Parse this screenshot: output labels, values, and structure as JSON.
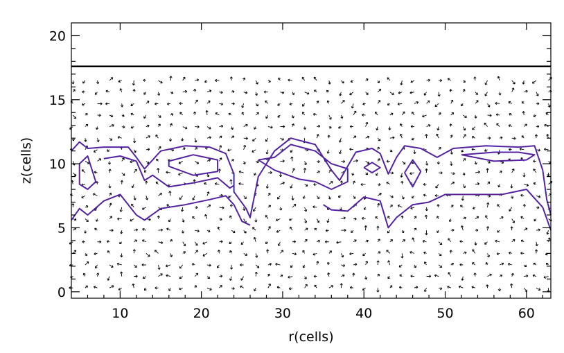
{
  "chart_data": {
    "type": "vector-contour",
    "xlabel": "r(cells)",
    "ylabel": "z(cells)",
    "xlim": [
      4,
      63
    ],
    "ylim": [
      -0.5,
      21
    ],
    "xticks": [
      10,
      20,
      30,
      40,
      50,
      60
    ],
    "xtick_labels": [
      "10",
      "20",
      "30",
      "40",
      "50",
      "60"
    ],
    "yticks": [
      0,
      5,
      10,
      15,
      20
    ],
    "ytick_labels": [
      "0",
      "5",
      "10",
      "15",
      "20"
    ],
    "boundary_line_z": 17.6,
    "vector_field": {
      "r_start": 4.2,
      "r_step": 1.5,
      "r_count": 40,
      "z_start": 0.3,
      "z_step": 0.9,
      "z_count": 19,
      "z_max": 17.0
    },
    "contours": [
      {
        "name": "outer",
        "points": [
          [
            4,
            11
          ],
          [
            5,
            11.7
          ],
          [
            6,
            11.2
          ],
          [
            8,
            11.3
          ],
          [
            11,
            11.3
          ],
          [
            12,
            10.5
          ],
          [
            13,
            9.6
          ],
          [
            15,
            11
          ],
          [
            18,
            11.4
          ],
          [
            21,
            11.3
          ],
          [
            23,
            10.8
          ],
          [
            24,
            9.2
          ],
          [
            24,
            7.8
          ],
          [
            25.5,
            6.5
          ],
          [
            26,
            5.8
          ],
          [
            27,
            9
          ],
          [
            29,
            11
          ],
          [
            31,
            12
          ],
          [
            34,
            11.5
          ],
          [
            36,
            9.5
          ],
          [
            37,
            8.7
          ],
          [
            39,
            10.9
          ],
          [
            41,
            11.2
          ],
          [
            42,
            10.8
          ],
          [
            43,
            9.2
          ],
          [
            44,
            10.5
          ],
          [
            45,
            11.4
          ],
          [
            47,
            11.2
          ],
          [
            49,
            10.5
          ],
          [
            51,
            11.2
          ],
          [
            55,
            11.4
          ],
          [
            59,
            11.3
          ],
          [
            61,
            11.4
          ],
          [
            62,
            9.5
          ],
          [
            62.5,
            7.2
          ],
          [
            63,
            6
          ]
        ]
      },
      {
        "name": "outer-lower",
        "points": [
          [
            4,
            5.6
          ],
          [
            5,
            6.5
          ],
          [
            6,
            6
          ],
          [
            8,
            7.1
          ],
          [
            10,
            7.6
          ],
          [
            12,
            6
          ],
          [
            13,
            5.6
          ],
          [
            15,
            6.5
          ],
          [
            18,
            6.8
          ],
          [
            21,
            7.2
          ],
          [
            23,
            7.5
          ],
          [
            24,
            6.8
          ],
          [
            25,
            5.5
          ],
          [
            26,
            5.2
          ]
        ]
      },
      {
        "name": "right-lower",
        "points": [
          [
            35,
            6.8
          ],
          [
            36,
            6.4
          ],
          [
            38,
            6.3
          ],
          [
            40,
            7.4
          ],
          [
            42,
            7.1
          ],
          [
            43,
            5
          ],
          [
            44,
            5.8
          ],
          [
            46,
            6.8
          ],
          [
            48,
            7
          ],
          [
            50,
            7.6
          ],
          [
            53,
            7.6
          ],
          [
            57,
            7.6
          ],
          [
            60,
            8
          ],
          [
            62,
            6.6
          ],
          [
            63,
            4.8
          ]
        ]
      },
      {
        "name": "inner-left",
        "points": [
          [
            5,
            10
          ],
          [
            6,
            10.6
          ],
          [
            7,
            8.6
          ],
          [
            6,
            8
          ],
          [
            5,
            8.4
          ],
          [
            5,
            10
          ]
        ]
      },
      {
        "name": "inner-left-2",
        "points": [
          [
            8,
            10.4
          ],
          [
            10,
            10.6
          ],
          [
            12,
            10.2
          ],
          [
            13,
            8.7
          ],
          [
            14,
            9.1
          ],
          [
            16,
            8.2
          ],
          [
            19,
            8.5
          ],
          [
            22,
            8.9
          ],
          [
            23.5,
            8.1
          ],
          [
            24,
            8.3
          ]
        ]
      },
      {
        "name": "inner-center",
        "points": [
          [
            27,
            10.3
          ],
          [
            29,
            10.5
          ],
          [
            31,
            11.5
          ],
          [
            34,
            11
          ],
          [
            36,
            10
          ],
          [
            38,
            9.6
          ],
          [
            38,
            8.6
          ],
          [
            36,
            8
          ],
          [
            34,
            8.6
          ],
          [
            32,
            8.8
          ],
          [
            29,
            9.5
          ],
          [
            27,
            10.3
          ]
        ]
      },
      {
        "name": "inner-right",
        "points": [
          [
            45,
            9.3
          ],
          [
            46,
            10.3
          ],
          [
            47,
            9.4
          ],
          [
            46,
            8.2
          ],
          [
            45,
            9.3
          ]
        ]
      },
      {
        "name": "inner-center-right",
        "points": [
          [
            40,
            9.7
          ],
          [
            41,
            10.1
          ],
          [
            42,
            9.7
          ],
          [
            41,
            9.3
          ],
          [
            40,
            9.7
          ]
        ]
      },
      {
        "name": "inner-far-right",
        "points": [
          [
            52,
            10.7
          ],
          [
            56,
            10.9
          ],
          [
            59,
            10.9
          ],
          [
            61,
            10.7
          ],
          [
            60,
            10.3
          ],
          [
            56,
            10.2
          ],
          [
            52,
            10.7
          ]
        ]
      },
      {
        "name": "inner-box",
        "points": [
          [
            16,
            10.2
          ],
          [
            19,
            10.7
          ],
          [
            22,
            10.3
          ],
          [
            22,
            9.4
          ],
          [
            19,
            9.1
          ],
          [
            16,
            9.8
          ],
          [
            16,
            10.2
          ]
        ]
      }
    ]
  }
}
